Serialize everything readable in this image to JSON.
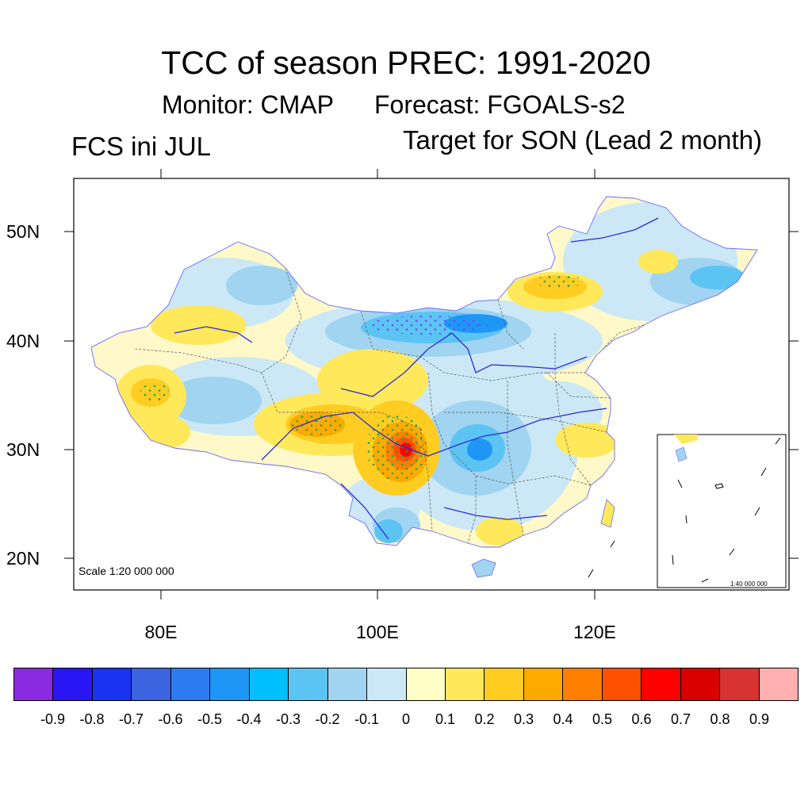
{
  "title": "TCC of season PREC: 1991-2020",
  "monitor": "Monitor: CMAP",
  "forecast": "Forecast: FGOALS-s2",
  "init": "FCS ini JUL",
  "target": "Target for SON (Lead 2 month)",
  "scale_main": "Scale 1:20 000 000",
  "scale_inset": "1:40 000 000",
  "lat_labels": [
    "50N",
    "40N",
    "30N",
    "20N"
  ],
  "lon_labels": [
    "80E",
    "100E",
    "120E"
  ],
  "colorbar": {
    "colors": [
      "#8a2be2",
      "#2a16f5",
      "#1a33f2",
      "#3c64e0",
      "#2d7bf0",
      "#1e96f5",
      "#00bfff",
      "#5cc4f2",
      "#a0d4f0",
      "#cce8f6",
      "#ffffc8",
      "#ffe85a",
      "#ffcc22",
      "#ffaa00",
      "#ff8000",
      "#ff5000",
      "#ff0000",
      "#d80000",
      "#d83232",
      "#ffb0b0"
    ],
    "labels": [
      "-0.9",
      "-0.8",
      "-0.7",
      "-0.6",
      "-0.5",
      "-0.4",
      "-0.3",
      "-0.2",
      "-0.1",
      "0",
      "0.1",
      "0.2",
      "0.3",
      "0.4",
      "0.5",
      "0.6",
      "0.7",
      "0.8",
      "0.9"
    ]
  }
}
